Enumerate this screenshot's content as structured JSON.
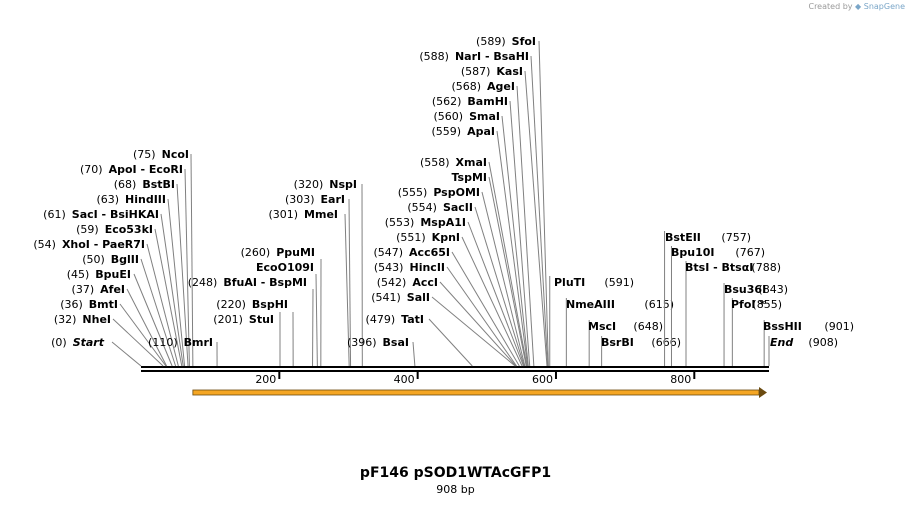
{
  "watermark": {
    "prefix": "Created by",
    "brand": "SnapGene"
  },
  "title": "pF146 pSOD1WTAcGFP1",
  "length_label": "908 bp",
  "sequence_length": 908,
  "ruler_ticks": [
    200,
    400,
    600,
    800
  ],
  "feature": {
    "name": "orange-arrow-feature",
    "start": 75,
    "end": 908,
    "color": "#f5a623"
  },
  "sites": [
    {
      "pos": 0,
      "pos_label": "(0)",
      "names": [
        "Start"
      ],
      "style": "italic"
    },
    {
      "pos": 32,
      "pos_label": "(32)",
      "names": [
        "NheI"
      ]
    },
    {
      "pos": 36,
      "pos_label": "(36)",
      "names": [
        "BmtI"
      ]
    },
    {
      "pos": 37,
      "pos_label": "(37)",
      "names": [
        "AfeI"
      ]
    },
    {
      "pos": 45,
      "pos_label": "(45)",
      "names": [
        "BpuEI"
      ]
    },
    {
      "pos": 50,
      "pos_label": "(50)",
      "names": [
        "BglII"
      ]
    },
    {
      "pos": 54,
      "pos_label": "(54)",
      "names": [
        "XhoI",
        "PaeR7I"
      ]
    },
    {
      "pos": 59,
      "pos_label": "(59)",
      "names": [
        "Eco53kI"
      ]
    },
    {
      "pos": 61,
      "pos_label": "(61)",
      "names": [
        "SacI",
        "BsiHKAI"
      ]
    },
    {
      "pos": 63,
      "pos_label": "(63)",
      "names": [
        "HindIII"
      ]
    },
    {
      "pos": 68,
      "pos_label": "(68)",
      "names": [
        "BstBI"
      ]
    },
    {
      "pos": 70,
      "pos_label": "(70)",
      "names": [
        "ApoI",
        "EcoRI"
      ]
    },
    {
      "pos": 75,
      "pos_label": "(75)",
      "names": [
        "NcoI"
      ]
    },
    {
      "pos": 110,
      "pos_label": "(110)",
      "names": [
        "BmrI"
      ]
    },
    {
      "pos": 201,
      "pos_label": "(201)",
      "names": [
        "StuI"
      ]
    },
    {
      "pos": 220,
      "pos_label": "(220)",
      "names": [
        "BspHI"
      ]
    },
    {
      "pos": 248,
      "pos_label": "(248)",
      "names": [
        "BfuAI",
        "BspMI"
      ]
    },
    {
      "pos": 255,
      "pos_label": "",
      "names": [
        "EcoO109I"
      ]
    },
    {
      "pos": 260,
      "pos_label": "(260)",
      "names": [
        "PpuMI"
      ]
    },
    {
      "pos": 301,
      "pos_label": "(301)",
      "names": [
        "MmeI"
      ]
    },
    {
      "pos": 303,
      "pos_label": "(303)",
      "names": [
        "EarI"
      ]
    },
    {
      "pos": 320,
      "pos_label": "(320)",
      "names": [
        "NspI"
      ]
    },
    {
      "pos": 396,
      "pos_label": "(396)",
      "names": [
        "BsaI"
      ]
    },
    {
      "pos": 479,
      "pos_label": "(479)",
      "names": [
        "TatI"
      ]
    },
    {
      "pos": 541,
      "pos_label": "(541)",
      "names": [
        "SalI"
      ]
    },
    {
      "pos": 542,
      "pos_label": "(542)",
      "names": [
        "AccI"
      ]
    },
    {
      "pos": 543,
      "pos_label": "(543)",
      "names": [
        "HincII"
      ]
    },
    {
      "pos": 547,
      "pos_label": "(547)",
      "names": [
        "Acc65I"
      ]
    },
    {
      "pos": 551,
      "pos_label": "(551)",
      "names": [
        "KpnI"
      ]
    },
    {
      "pos": 553,
      "pos_label": "(553)",
      "names": [
        "MspA1I"
      ]
    },
    {
      "pos": 554,
      "pos_label": "(554)",
      "names": [
        "SacII"
      ]
    },
    {
      "pos": 555,
      "pos_label": "(555)",
      "names": [
        "PspOMI"
      ]
    },
    {
      "pos": 557,
      "pos_label": "",
      "names": [
        "TspMI"
      ]
    },
    {
      "pos": 558,
      "pos_label": "(558)",
      "names": [
        "XmaI"
      ]
    },
    {
      "pos": 559,
      "pos_label": "(559)",
      "names": [
        "ApaI"
      ]
    },
    {
      "pos": 560,
      "pos_label": "(560)",
      "names": [
        "SmaI"
      ]
    },
    {
      "pos": 562,
      "pos_label": "(562)",
      "names": [
        "BamHI"
      ]
    },
    {
      "pos": 568,
      "pos_label": "(568)",
      "names": [
        "AgeI"
      ]
    },
    {
      "pos": 587,
      "pos_label": "(587)",
      "names": [
        "KasI"
      ]
    },
    {
      "pos": 588,
      "pos_label": "(588)",
      "names": [
        "NarI",
        "BsaHI"
      ]
    },
    {
      "pos": 589,
      "pos_label": "(589)",
      "names": [
        "SfoI"
      ]
    },
    {
      "pos": 591,
      "pos_label": "(591)",
      "names": [
        "PluTI"
      ]
    },
    {
      "pos": 615,
      "pos_label": "(615)",
      "names": [
        "NmeAIII"
      ]
    },
    {
      "pos": 648,
      "pos_label": "(648)",
      "names": [
        "MscI"
      ]
    },
    {
      "pos": 666,
      "pos_label": "(666)",
      "names": [
        "BsrBI"
      ]
    },
    {
      "pos": 757,
      "pos_label": "(757)",
      "names": [
        "BstEII"
      ]
    },
    {
      "pos": 767,
      "pos_label": "(767)",
      "names": [
        "Bpu10I"
      ]
    },
    {
      "pos": 788,
      "pos_label": "(788)",
      "names": [
        "BtsI",
        "BtsαI"
      ]
    },
    {
      "pos": 843,
      "pos_label": "(843)",
      "names": [
        "Bsu36I"
      ]
    },
    {
      "pos": 855,
      "pos_label": "(855)",
      "names": [
        "PfoI *"
      ]
    },
    {
      "pos": 901,
      "pos_label": "(901)",
      "names": [
        "BssHII"
      ]
    },
    {
      "pos": 908,
      "pos_label": "(908)",
      "names": [
        "End"
      ],
      "style": "italic"
    }
  ]
}
